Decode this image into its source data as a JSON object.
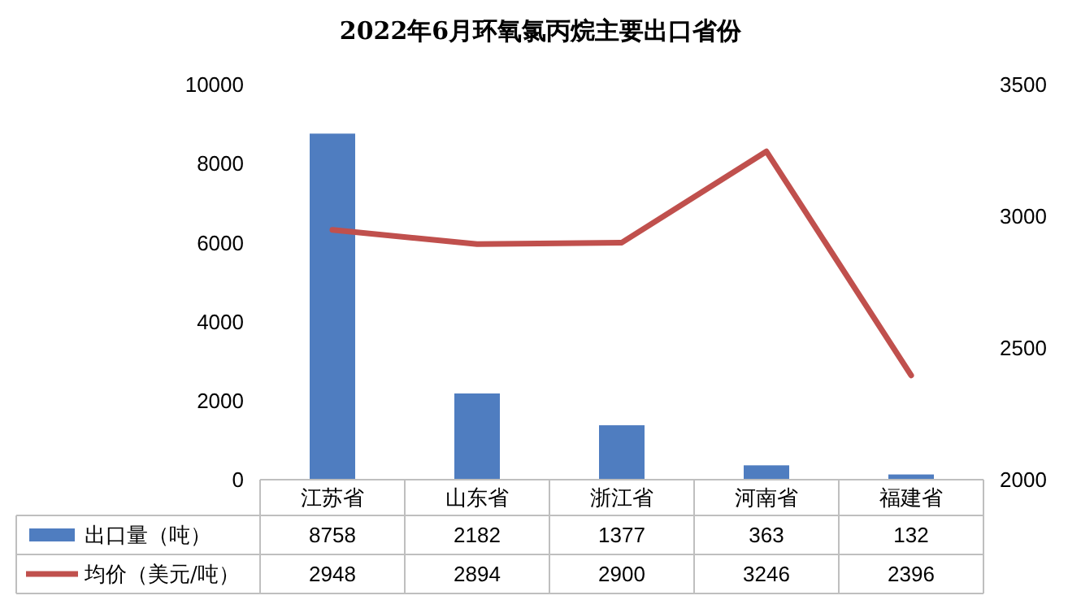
{
  "chart_data": {
    "type": "bar",
    "title": "2022年6月环氧氯丙烷主要出口省份",
    "categories": [
      "江苏省",
      "山东省",
      "浙江省",
      "河南省",
      "福建省"
    ],
    "series": [
      {
        "name": "出口量（吨）",
        "color": "#4f7dc0",
        "values": [
          8758,
          2182,
          1377,
          363,
          132
        ]
      },
      {
        "name": "均价（美元/吨）",
        "type": "line",
        "axis": "y2",
        "color": "#c0504d",
        "values": [
          2948,
          2894,
          2900,
          3246,
          2396
        ]
      }
    ],
    "ylim": [
      0,
      10000
    ],
    "yticks": [
      0,
      2000,
      4000,
      6000,
      8000,
      10000
    ],
    "y2lim": [
      2000,
      3500
    ],
    "y2ticks": [
      2000,
      2500,
      3000,
      3500
    ],
    "legend": "bottom",
    "data_labels": true,
    "grid": false
  }
}
